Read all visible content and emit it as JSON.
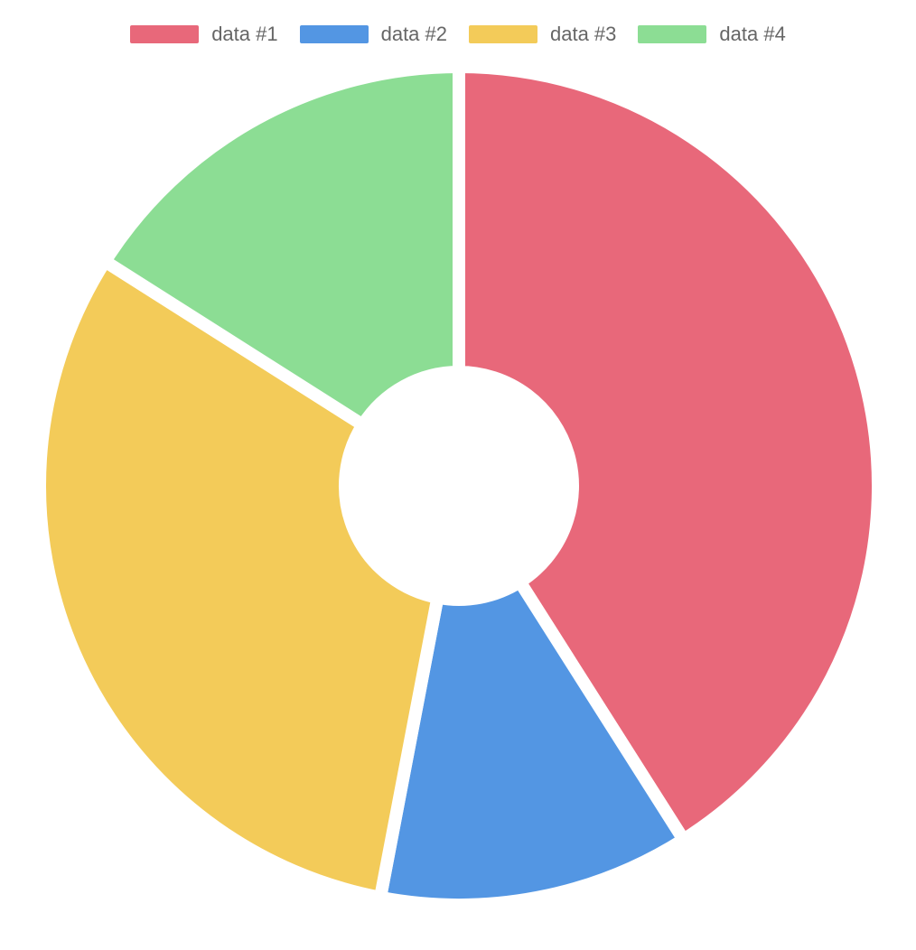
{
  "chart_data": {
    "type": "doughnut",
    "labels": [
      "data #1",
      "data #2",
      "data #3",
      "data #4"
    ],
    "values": [
      41,
      12,
      31,
      16
    ],
    "colors": [
      "#e8687a",
      "#5396e3",
      "#f3cb59",
      "#8cdd94"
    ],
    "legend_position": "top",
    "title": "",
    "start_angle_deg": 0
  }
}
